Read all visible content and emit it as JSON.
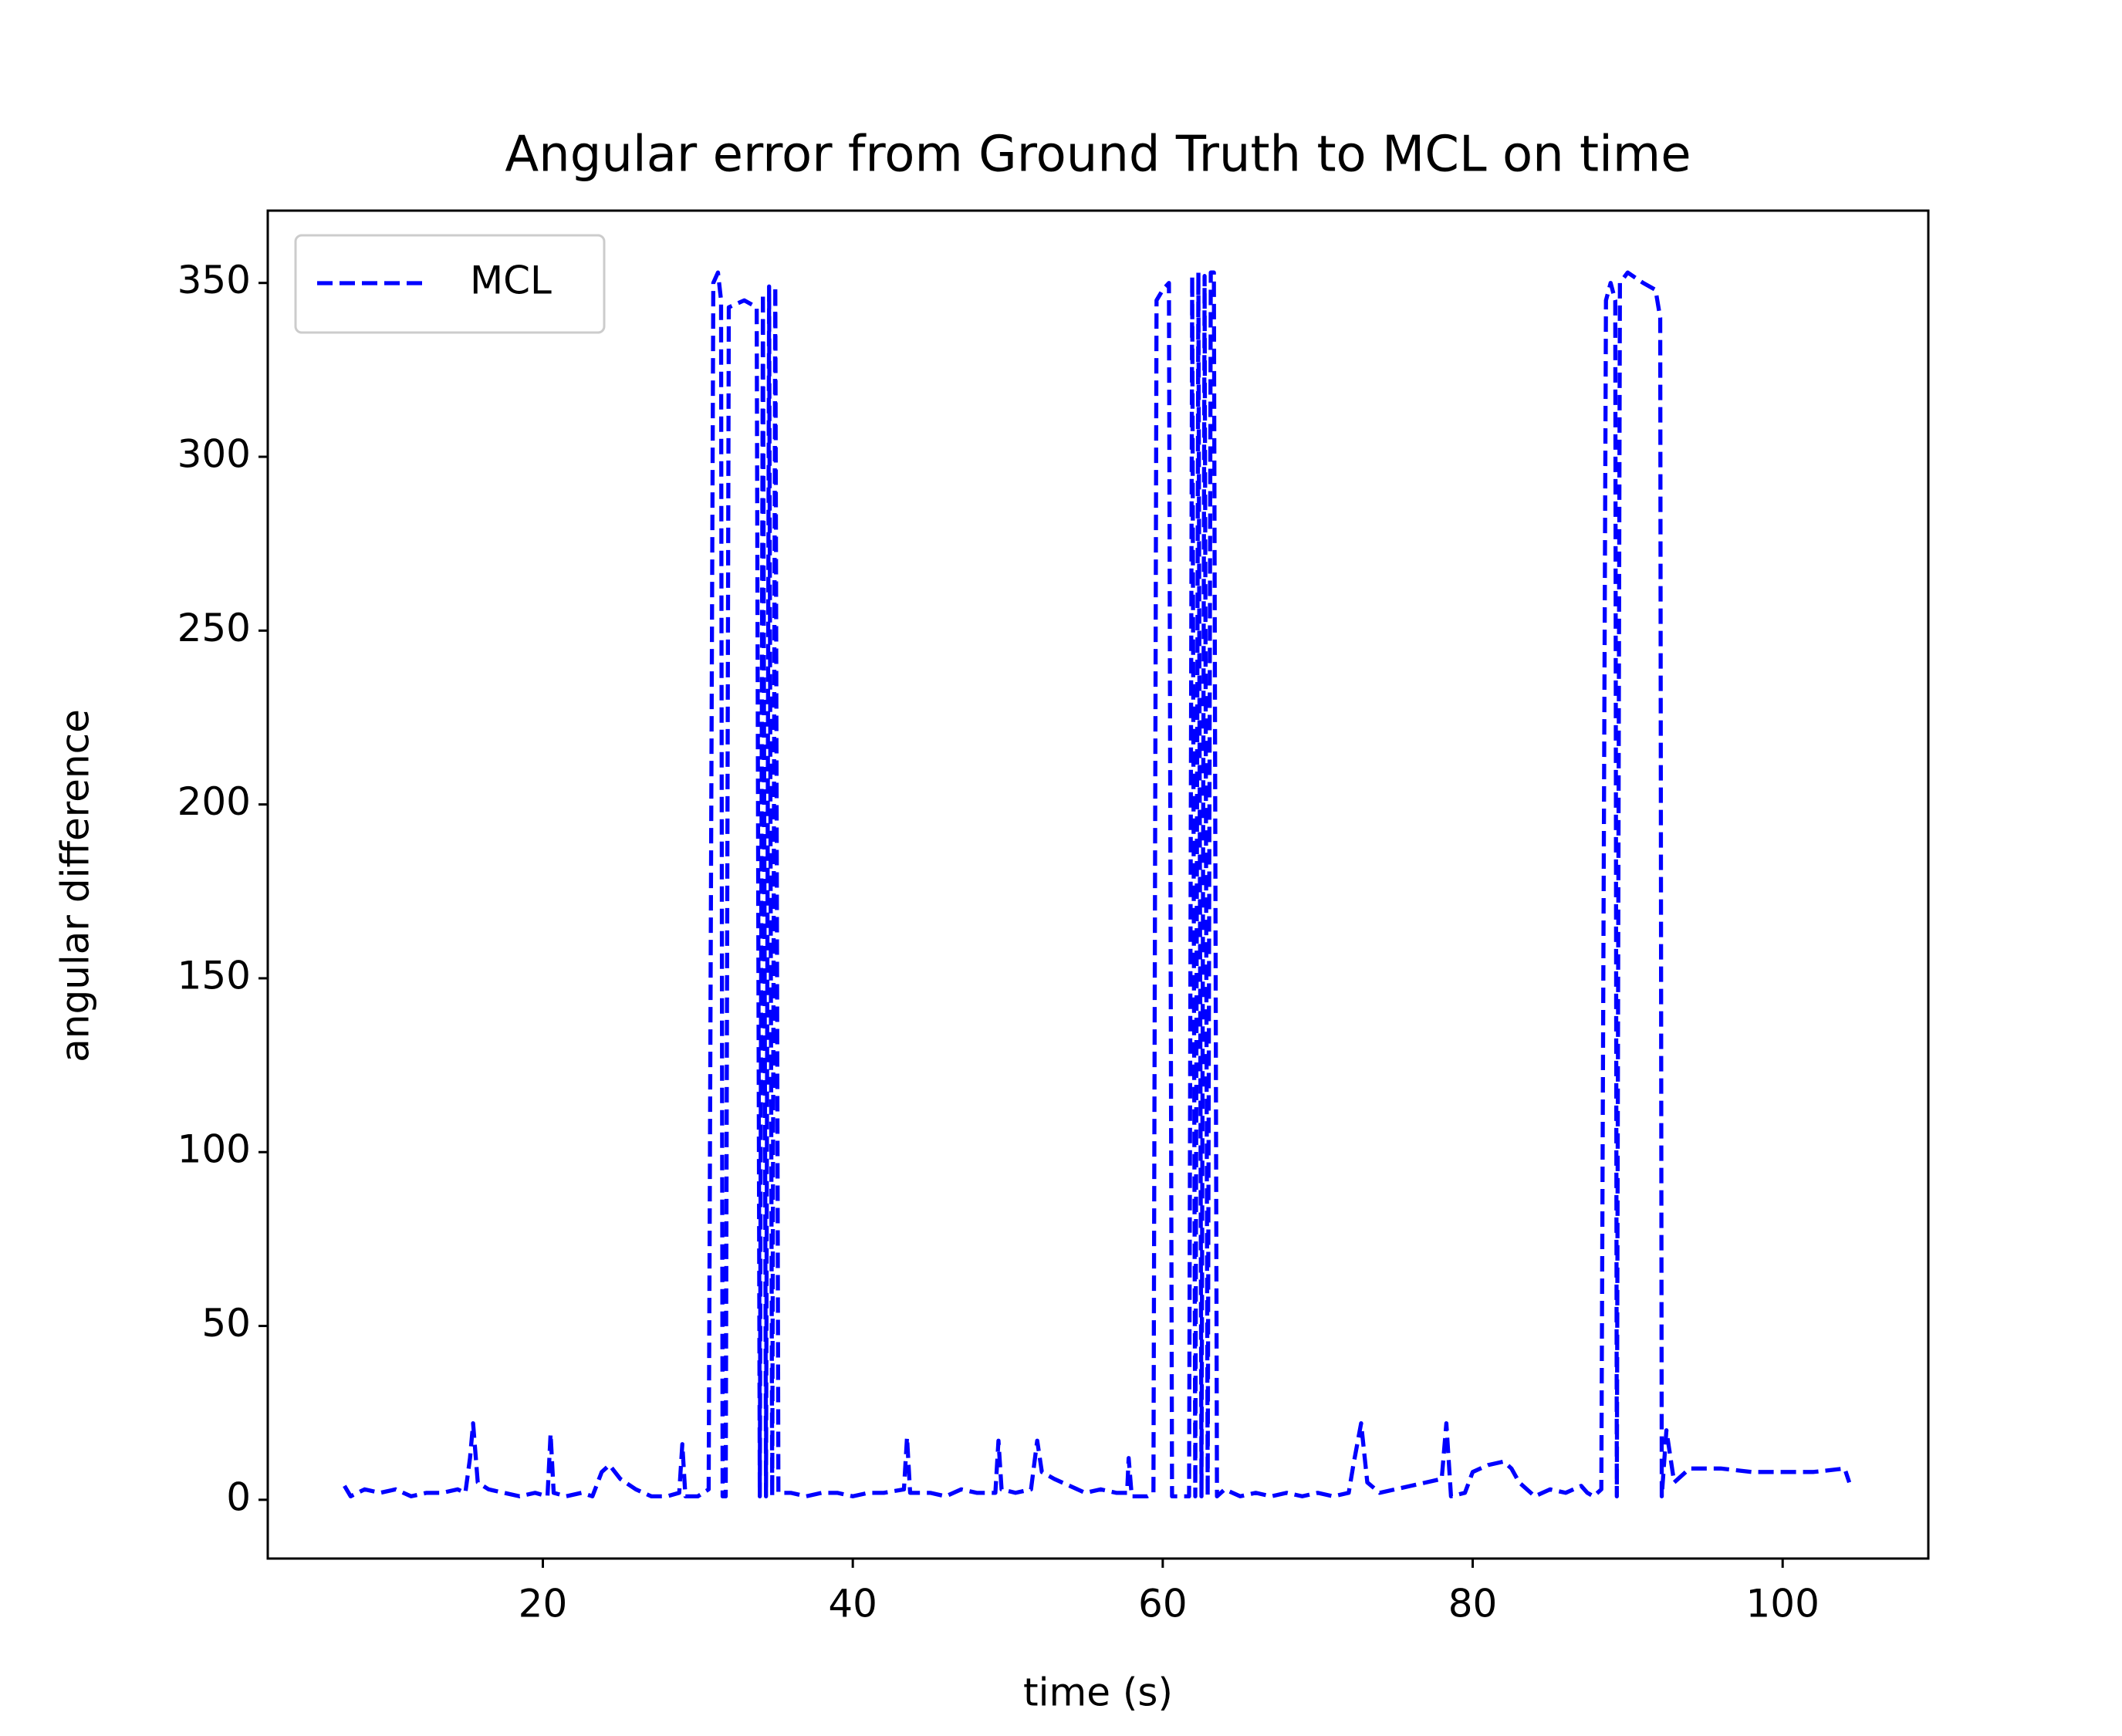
{
  "chart_data": {
    "type": "line",
    "title": "Angular error from Ground Truth to MCL on time",
    "x_label": "time (s)",
    "y_label": "angular difference",
    "xlim": [
      2.25,
      109.4
    ],
    "ylim": [
      -16.9,
      370.8
    ],
    "xticks": [
      20,
      40,
      60,
      80,
      100
    ],
    "yticks": [
      0,
      50,
      100,
      150,
      200,
      250,
      300,
      350
    ],
    "legend": "upper left",
    "line_style": "dashed",
    "x": [
      7.2,
      7.6,
      8.5,
      9.5,
      10.5,
      11.5,
      12.5,
      13.5,
      14.5,
      15.0,
      15.3,
      15.5,
      15.8,
      16.5,
      17.5,
      18.5,
      19.5,
      20.3,
      20.5,
      20.7,
      21.5,
      22.5,
      23.2,
      23.8,
      24.3,
      25,
      26,
      27,
      28,
      28.8,
      29.0,
      29.2,
      30,
      30.7,
      31.0,
      31.3,
      31.5,
      31.6,
      31.8,
      32.0,
      32.5,
      33.0,
      33.8,
      34.0,
      34.2,
      34.4,
      34.6,
      34.8,
      35.0,
      35.2,
      36,
      37,
      38,
      39,
      40,
      41,
      42,
      43.3,
      43.5,
      43.7,
      45,
      46,
      47,
      48,
      49.2,
      49.4,
      49.6,
      50.5,
      51.5,
      51.9,
      52.2,
      53,
      54,
      55,
      56,
      57,
      57.7,
      57.8,
      58,
      59,
      59.4,
      59.6,
      60.0,
      60.4,
      60.6,
      61.7,
      61.9,
      62.1,
      62.3,
      62.5,
      62.7,
      62.9,
      63.1,
      63.3,
      63.5,
      64,
      65,
      66,
      67,
      68,
      69,
      70,
      71,
      72,
      72.3,
      72.8,
      73.2,
      74,
      75,
      76,
      77,
      78,
      78.3,
      78.6,
      79.5,
      80,
      81,
      82,
      82.5,
      83,
      84,
      85,
      86,
      87,
      87.4,
      87.8,
      88.3,
      88.6,
      88.9,
      89.2,
      89.3,
      89.5,
      90,
      91,
      91.8,
      92.1,
      92.2,
      92.5,
      93,
      94,
      96,
      98,
      100,
      102,
      104,
      104.3
    ],
    "series": [
      {
        "name": "MCL",
        "color": "#0000ff",
        "values": [
          4,
          1,
          3,
          2,
          3,
          1,
          2,
          2,
          3,
          2,
          12,
          22,
          5,
          3,
          2,
          1,
          2,
          1,
          19,
          2,
          1,
          2,
          1,
          8,
          10,
          6,
          3,
          1,
          1,
          2,
          16,
          1,
          1,
          3,
          350,
          353,
          345,
          1,
          1,
          343,
          344,
          345,
          343,
          1,
          347,
          1,
          349,
          1,
          349,
          2,
          2,
          1,
          2,
          2,
          1,
          2,
          2,
          3,
          18,
          2,
          2,
          1,
          3,
          2,
          2,
          17,
          3,
          2,
          3,
          17,
          8,
          6,
          4,
          2,
          3,
          2,
          2,
          12,
          1,
          1,
          2,
          345,
          348,
          350,
          1,
          1,
          352,
          1,
          353,
          1,
          352,
          1,
          353,
          353,
          1,
          3,
          1,
          2,
          1,
          2,
          1,
          2,
          1,
          2,
          10,
          22,
          5,
          2,
          3,
          4,
          5,
          6,
          22,
          1,
          2,
          8,
          10,
          11,
          9,
          5,
          1,
          3,
          2,
          4,
          2,
          1,
          3,
          345,
          350,
          345,
          1,
          350,
          353,
          350,
          348,
          340,
          1,
          20,
          5,
          9,
          9,
          8,
          8,
          8,
          9,
          5
        ]
      }
    ]
  }
}
